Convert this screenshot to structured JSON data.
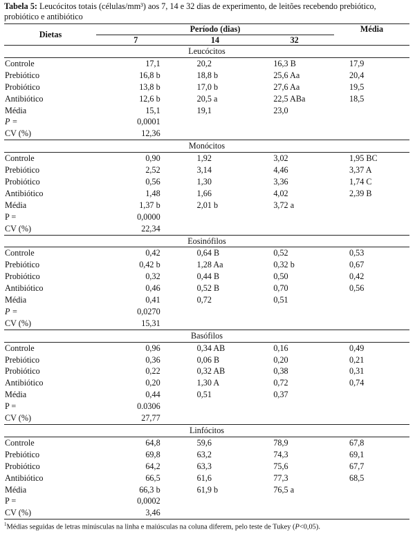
{
  "caption": {
    "label": "Tabela 5:",
    "text": " Leucócitos totais (células/mm³) aos 7, 14 e 32 dias de experimento, de leitões recebendo prebiótico, probiótico e antibiótico"
  },
  "header": {
    "dietas": "Dietas",
    "periodo": "Período (dias)",
    "media": "Média",
    "d7": "7",
    "d14": "14",
    "d32": "32"
  },
  "sections": [
    {
      "title": "Leucócitos",
      "rows": [
        {
          "label": "Controle",
          "v7": "17,1",
          "v14": "20,2",
          "v32": "16,3 B",
          "m": "17,9"
        },
        {
          "label": "Prebiótico",
          "v7": "16,8 b",
          "v14": "18,8 b",
          "v32": "25,6 Aa",
          "m": "20,4"
        },
        {
          "label": "Probiótico",
          "v7": "13,8 b",
          "v14": "17,0 b",
          "v32": "27,6 Aa",
          "m": "19,5"
        },
        {
          "label": "Antibiótico",
          "v7": "12,6 b",
          "v14": "20,5 a",
          "v32": "22,5 ABa",
          "m": "18,5"
        },
        {
          "label": "Média",
          "v7": "15,1",
          "v14": "19,1",
          "v32": "23,0",
          "m": ""
        },
        {
          "label": "P =",
          "italic": true,
          "v7": "0,0001",
          "v14": "",
          "v32": "",
          "m": ""
        },
        {
          "label": "CV (%)",
          "v7": "12,36",
          "v14": "",
          "v32": "",
          "m": ""
        }
      ]
    },
    {
      "title": "Monócitos",
      "rows": [
        {
          "label": "Controle",
          "v7": "0,90",
          "v14": "1,92",
          "v32": "3,02",
          "m": "1,95 BC"
        },
        {
          "label": "Prebiótico",
          "v7": "2,52",
          "v14": "3,14",
          "v32": "4,46",
          "m": "3,37 A"
        },
        {
          "label": "Probiótico",
          "v7": "0,56",
          "v14": "1,30",
          "v32": "3,36",
          "m": "1,74 C"
        },
        {
          "label": "Antibiótico",
          "v7": "1,48",
          "v14": "1,66",
          "v32": "4,02",
          "m": "2,39 B"
        },
        {
          "label": "Média",
          "v7": "1,37 b",
          "v14": "2,01 b",
          "v32": "3,72 a",
          "m": ""
        },
        {
          "label": "P =",
          "v7": "0,0000",
          "v14": "",
          "v32": "",
          "m": ""
        },
        {
          "label": "CV (%)",
          "v7": "22,34",
          "v14": "",
          "v32": "",
          "m": ""
        }
      ]
    },
    {
      "title": "Eosinófilos",
      "rows": [
        {
          "label": "Controle",
          "v7": "0,42",
          "v14": "0,64 B",
          "v32": "0,52",
          "m": "0,53"
        },
        {
          "label": "Prebiótico",
          "v7": "0,42 b",
          "v14": "1,28 Aa",
          "v32": "0,32 b",
          "m": "0,67"
        },
        {
          "label": "Probiótico",
          "v7": "0,32",
          "v14": "0,44 B",
          "v32": "0,50",
          "m": "0,42"
        },
        {
          "label": "Antibiótico",
          "v7": "0,46",
          "v14": "0,52 B",
          "v32": "0,70",
          "m": "0,56"
        },
        {
          "label": "Média",
          "v7": "0,41",
          "v14": "0,72",
          "v32": "0,51",
          "m": ""
        },
        {
          "label": "P =",
          "italic": true,
          "v7": "0,0270",
          "v14": "",
          "v32": "",
          "m": ""
        },
        {
          "label": "CV (%)",
          "v7": "15,31",
          "v14": "",
          "v32": "",
          "m": ""
        }
      ]
    },
    {
      "title": "Basófilos",
      "rows": [
        {
          "label": "Controle",
          "v7": "0,96",
          "v14": "0,34 AB",
          "v32": "0,16",
          "m": "0,49"
        },
        {
          "label": "Prebiótico",
          "v7": "0,36",
          "v14": "0,06 B",
          "v32": "0,20",
          "m": "0,21"
        },
        {
          "label": "Probiótico",
          "v7": "0,22",
          "v14": "0,32 AB",
          "v32": "0,38",
          "m": "0,31"
        },
        {
          "label": "Antibiótico",
          "v7": "0,20",
          "v14": "1,30 A",
          "v32": "0,72",
          "m": "0,74"
        },
        {
          "label": "Média",
          "v7": "0,44",
          "v14": "0,51",
          "v32": "0,37",
          "m": ""
        },
        {
          "label": "P =",
          "v7": "0.0306",
          "v14": "",
          "v32": "",
          "m": ""
        },
        {
          "label": "CV (%)",
          "v7": "27,77",
          "v14": "",
          "v32": "",
          "m": ""
        }
      ]
    },
    {
      "title": "Linfócitos",
      "rows": [
        {
          "label": "Controle",
          "v7": "64,8",
          "v14": "59,6",
          "v32": "78,9",
          "m": "67,8"
        },
        {
          "label": "Prebiótico",
          "v7": "69,8",
          "v14": "63,2",
          "v32": "74,3",
          "m": "69,1"
        },
        {
          "label": "Probiótico",
          "v7": "64,2",
          "v14": "63,3",
          "v32": "75,6",
          "m": "67,7"
        },
        {
          "label": "Antibiótico",
          "v7": "66,5",
          "v14": "61,6",
          "v32": "77,3",
          "m": "68,5"
        },
        {
          "label": "Média",
          "v7": "66,3 b",
          "v14": "61,9 b",
          "v32": "76,5 a",
          "m": ""
        },
        {
          "label": "P =",
          "v7": "0,0002",
          "v14": "",
          "v32": "",
          "m": ""
        },
        {
          "label": "CV (%)",
          "v7": "3,46",
          "v14": "",
          "v32": "",
          "m": ""
        }
      ]
    }
  ],
  "footnote": {
    "sup": "1",
    "text": "Médias seguidas de letras minúsculas na linha e maiúsculas na coluna diferem, pelo teste de Tukey (",
    "p": "P",
    "tail": "<0,05)."
  }
}
